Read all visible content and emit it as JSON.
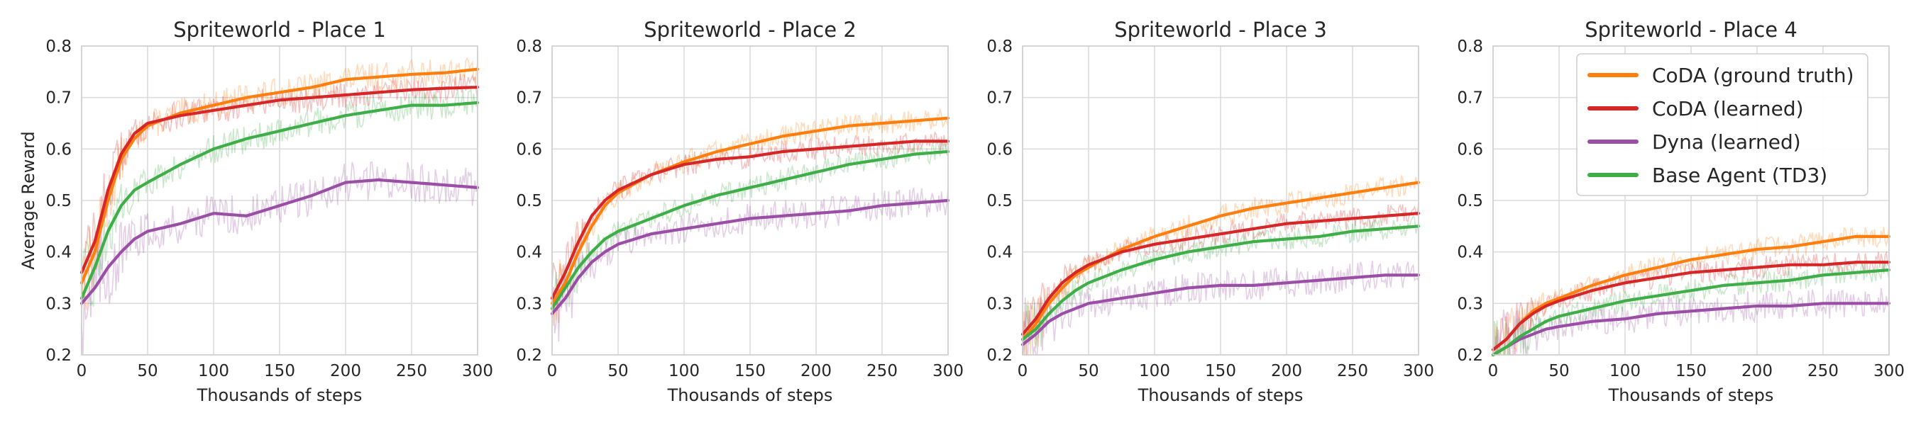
{
  "chart_data": [
    {
      "type": "line",
      "title": "Spriteworld - Place 1",
      "xlabel": "Thousands of steps",
      "ylabel": "Average Reward",
      "xlim": [
        0,
        300
      ],
      "ylim": [
        0.2,
        0.8
      ],
      "xticks": [
        0,
        50,
        100,
        150,
        200,
        250,
        300
      ],
      "yticks": [
        "0.2",
        "0.3",
        "0.4",
        "0.5",
        "0.6",
        "0.7",
        "0.8"
      ],
      "grid": true,
      "x": [
        0,
        10,
        20,
        30,
        40,
        50,
        75,
        100,
        125,
        150,
        175,
        200,
        225,
        250,
        275,
        300
      ],
      "series": [
        {
          "name": "CoDA (ground truth)",
          "values": [
            0.34,
            0.4,
            0.5,
            0.58,
            0.62,
            0.645,
            0.67,
            0.685,
            0.7,
            0.71,
            0.72,
            0.735,
            0.74,
            0.745,
            0.748,
            0.755
          ]
        },
        {
          "name": "CoDA (learned)",
          "values": [
            0.36,
            0.42,
            0.52,
            0.59,
            0.63,
            0.65,
            0.665,
            0.675,
            0.685,
            0.695,
            0.7,
            0.705,
            0.71,
            0.715,
            0.718,
            0.72
          ]
        },
        {
          "name": "Dyna (learned)",
          "values": [
            0.3,
            0.33,
            0.37,
            0.4,
            0.425,
            0.44,
            0.455,
            0.475,
            0.47,
            0.49,
            0.51,
            0.535,
            0.54,
            0.535,
            0.53,
            0.525
          ]
        },
        {
          "name": "Base Agent (TD3)",
          "values": [
            0.31,
            0.37,
            0.44,
            0.49,
            0.52,
            0.535,
            0.57,
            0.6,
            0.62,
            0.635,
            0.65,
            0.665,
            0.675,
            0.685,
            0.685,
            0.69
          ]
        }
      ]
    },
    {
      "type": "line",
      "title": "Spriteworld - Place 2",
      "xlabel": "Thousands of steps",
      "ylabel": "",
      "xlim": [
        0,
        300
      ],
      "ylim": [
        0.2,
        0.8
      ],
      "xticks": [
        0,
        50,
        100,
        150,
        200,
        250,
        300
      ],
      "yticks": [
        "0.2",
        "0.3",
        "0.4",
        "0.5",
        "0.6",
        "0.7",
        "0.8"
      ],
      "grid": true,
      "x": [
        0,
        10,
        20,
        30,
        40,
        50,
        75,
        100,
        125,
        150,
        175,
        200,
        225,
        250,
        275,
        300
      ],
      "series": [
        {
          "name": "CoDA (ground truth)",
          "values": [
            0.3,
            0.34,
            0.4,
            0.45,
            0.49,
            0.515,
            0.55,
            0.575,
            0.595,
            0.61,
            0.625,
            0.635,
            0.645,
            0.65,
            0.655,
            0.66
          ]
        },
        {
          "name": "CoDA (learned)",
          "values": [
            0.31,
            0.36,
            0.42,
            0.47,
            0.5,
            0.52,
            0.55,
            0.57,
            0.58,
            0.585,
            0.595,
            0.6,
            0.605,
            0.61,
            0.615,
            0.615
          ]
        },
        {
          "name": "Dyna (learned)",
          "values": [
            0.28,
            0.31,
            0.35,
            0.38,
            0.4,
            0.415,
            0.435,
            0.445,
            0.455,
            0.465,
            0.47,
            0.475,
            0.48,
            0.49,
            0.495,
            0.5
          ]
        },
        {
          "name": "Base Agent (TD3)",
          "values": [
            0.29,
            0.33,
            0.37,
            0.4,
            0.425,
            0.44,
            0.465,
            0.49,
            0.51,
            0.525,
            0.54,
            0.555,
            0.57,
            0.58,
            0.59,
            0.595
          ]
        }
      ]
    },
    {
      "type": "line",
      "title": "Spriteworld - Place 3",
      "xlabel": "Thousands of steps",
      "ylabel": "",
      "xlim": [
        0,
        300
      ],
      "ylim": [
        0.2,
        0.8
      ],
      "xticks": [
        0,
        50,
        100,
        150,
        200,
        250,
        300
      ],
      "yticks": [
        "0.2",
        "0.3",
        "0.4",
        "0.5",
        "0.6",
        "0.7",
        "0.8"
      ],
      "grid": true,
      "x": [
        0,
        10,
        20,
        30,
        40,
        50,
        75,
        100,
        125,
        150,
        175,
        200,
        225,
        250,
        275,
        300
      ],
      "series": [
        {
          "name": "CoDA (ground truth)",
          "values": [
            0.23,
            0.26,
            0.3,
            0.33,
            0.355,
            0.37,
            0.405,
            0.43,
            0.45,
            0.47,
            0.485,
            0.495,
            0.505,
            0.515,
            0.525,
            0.535
          ]
        },
        {
          "name": "CoDA (learned)",
          "values": [
            0.24,
            0.27,
            0.31,
            0.34,
            0.36,
            0.375,
            0.4,
            0.415,
            0.425,
            0.435,
            0.445,
            0.455,
            0.46,
            0.465,
            0.47,
            0.475
          ]
        },
        {
          "name": "Dyna (learned)",
          "values": [
            0.22,
            0.24,
            0.265,
            0.28,
            0.29,
            0.3,
            0.31,
            0.32,
            0.33,
            0.335,
            0.335,
            0.34,
            0.345,
            0.35,
            0.355,
            0.355
          ]
        },
        {
          "name": "Base Agent (TD3)",
          "values": [
            0.23,
            0.25,
            0.28,
            0.305,
            0.325,
            0.34,
            0.365,
            0.385,
            0.4,
            0.41,
            0.42,
            0.425,
            0.43,
            0.44,
            0.445,
            0.45
          ]
        }
      ]
    },
    {
      "type": "line",
      "title": "Spriteworld - Place 4",
      "xlabel": "Thousands of steps",
      "ylabel": "",
      "xlim": [
        0,
        300
      ],
      "ylim": [
        0.2,
        0.8
      ],
      "xticks": [
        0,
        50,
        100,
        150,
        200,
        250,
        300
      ],
      "yticks": [
        "0.2",
        "0.3",
        "0.4",
        "0.5",
        "0.6",
        "0.7",
        "0.8"
      ],
      "grid": true,
      "legend": "top-right",
      "x": [
        0,
        10,
        20,
        30,
        40,
        50,
        75,
        100,
        125,
        150,
        175,
        200,
        225,
        250,
        275,
        300
      ],
      "series": [
        {
          "name": "CoDA (ground truth)",
          "values": [
            0.21,
            0.23,
            0.26,
            0.285,
            0.3,
            0.31,
            0.335,
            0.355,
            0.37,
            0.385,
            0.395,
            0.405,
            0.41,
            0.42,
            0.43,
            0.43
          ]
        },
        {
          "name": "CoDA (learned)",
          "values": [
            0.21,
            0.23,
            0.26,
            0.28,
            0.295,
            0.305,
            0.325,
            0.34,
            0.35,
            0.36,
            0.365,
            0.37,
            0.375,
            0.375,
            0.38,
            0.38
          ]
        },
        {
          "name": "Dyna (learned)",
          "values": [
            0.2,
            0.215,
            0.23,
            0.24,
            0.25,
            0.255,
            0.265,
            0.27,
            0.28,
            0.285,
            0.29,
            0.295,
            0.295,
            0.3,
            0.3,
            0.3
          ]
        },
        {
          "name": "Base Agent (TD3)",
          "values": [
            0.2,
            0.215,
            0.235,
            0.25,
            0.265,
            0.275,
            0.29,
            0.305,
            0.315,
            0.325,
            0.335,
            0.34,
            0.345,
            0.355,
            0.36,
            0.365
          ]
        }
      ]
    }
  ],
  "colors": {
    "CoDA (ground truth)": "#ff7f0e",
    "CoDA (learned)": "#d62728",
    "Dyna (learned)": "#9a4ea6",
    "Base Agent (TD3)": "#3fae49"
  }
}
